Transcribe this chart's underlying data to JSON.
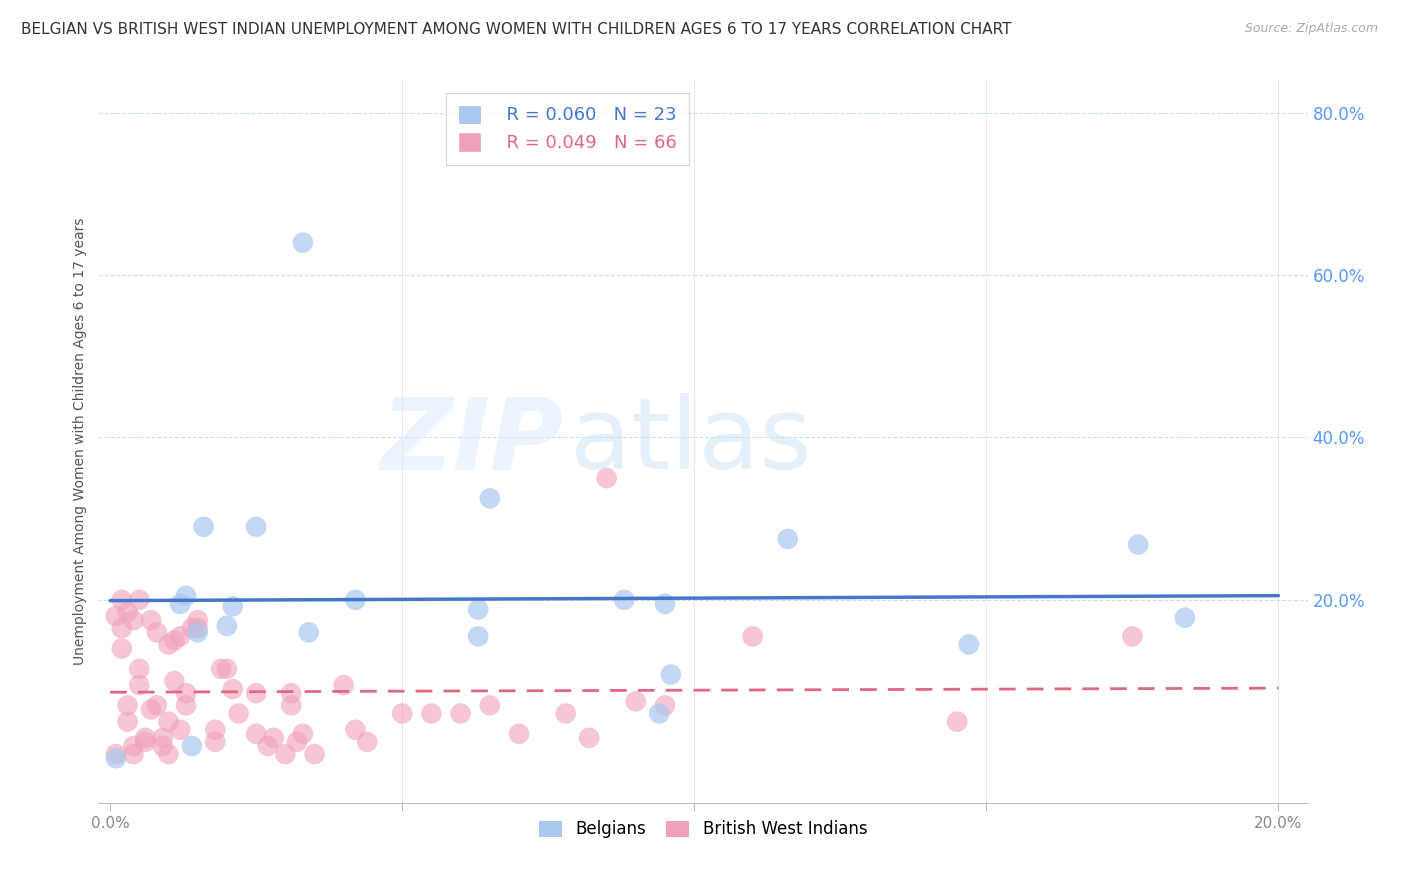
{
  "title": "BELGIAN VS BRITISH WEST INDIAN UNEMPLOYMENT AMONG WOMEN WITH CHILDREN AGES 6 TO 17 YEARS CORRELATION CHART",
  "source": "Source: ZipAtlas.com",
  "ylabel": "Unemployment Among Women with Children Ages 6 to 17 years",
  "xlim": [
    -0.002,
    0.205
  ],
  "ylim": [
    -0.05,
    0.84
  ],
  "xticks": [
    0.0,
    0.05,
    0.1,
    0.15,
    0.2
  ],
  "xtick_labels": [
    "0.0%",
    "",
    "",
    "",
    "20.0%"
  ],
  "ytick_labels_right": [
    "80.0%",
    "60.0%",
    "40.0%",
    "20.0%"
  ],
  "yticks_right": [
    0.8,
    0.6,
    0.4,
    0.2
  ],
  "legend_r1": "R = 0.060",
  "legend_n1": "N = 23",
  "legend_r2": "R = 0.049",
  "legend_n2": "N = 66",
  "color_belgian": "#a8c8f0",
  "color_bwi": "#f0a0b8",
  "color_belgian_line": "#4477cc",
  "color_bwi_line": "#e06880",
  "belgian_x": [
    0.001,
    0.012,
    0.013,
    0.014,
    0.015,
    0.016,
    0.02,
    0.021,
    0.025,
    0.033,
    0.034,
    0.042,
    0.063,
    0.065,
    0.088,
    0.094,
    0.096,
    0.116,
    0.147,
    0.176,
    0.184,
    0.095,
    0.063
  ],
  "belgian_y": [
    0.005,
    0.195,
    0.205,
    0.02,
    0.16,
    0.29,
    0.168,
    0.192,
    0.29,
    0.64,
    0.16,
    0.2,
    0.188,
    0.325,
    0.2,
    0.06,
    0.108,
    0.275,
    0.145,
    0.268,
    0.178,
    0.195,
    0.155
  ],
  "bwi_x": [
    0.001,
    0.001,
    0.002,
    0.002,
    0.002,
    0.003,
    0.003,
    0.003,
    0.004,
    0.004,
    0.004,
    0.005,
    0.005,
    0.005,
    0.006,
    0.006,
    0.007,
    0.007,
    0.008,
    0.008,
    0.009,
    0.009,
    0.01,
    0.01,
    0.01,
    0.011,
    0.011,
    0.012,
    0.012,
    0.013,
    0.013,
    0.014,
    0.015,
    0.015,
    0.018,
    0.018,
    0.019,
    0.02,
    0.021,
    0.022,
    0.025,
    0.025,
    0.027,
    0.028,
    0.03,
    0.031,
    0.031,
    0.032,
    0.033,
    0.035,
    0.04,
    0.042,
    0.044,
    0.05,
    0.055,
    0.06,
    0.065,
    0.07,
    0.078,
    0.082,
    0.085,
    0.09,
    0.095,
    0.11,
    0.145,
    0.175
  ],
  "bwi_y": [
    0.01,
    0.18,
    0.14,
    0.165,
    0.2,
    0.05,
    0.07,
    0.185,
    0.01,
    0.02,
    0.175,
    0.095,
    0.115,
    0.2,
    0.025,
    0.03,
    0.065,
    0.175,
    0.07,
    0.16,
    0.02,
    0.03,
    0.01,
    0.05,
    0.145,
    0.1,
    0.15,
    0.04,
    0.155,
    0.07,
    0.085,
    0.165,
    0.165,
    0.175,
    0.025,
    0.04,
    0.115,
    0.115,
    0.09,
    0.06,
    0.035,
    0.085,
    0.02,
    0.03,
    0.01,
    0.07,
    0.085,
    0.025,
    0.035,
    0.01,
    0.095,
    0.04,
    0.025,
    0.06,
    0.06,
    0.06,
    0.07,
    0.035,
    0.06,
    0.03,
    0.35,
    0.075,
    0.07,
    0.155,
    0.05,
    0.155
  ],
  "watermark_zip": "ZIP",
  "watermark_atlas": "atlas",
  "title_fontsize": 11,
  "label_fontsize": 10,
  "tick_fontsize": 11,
  "legend_fontsize": 13,
  "source_fontsize": 9
}
